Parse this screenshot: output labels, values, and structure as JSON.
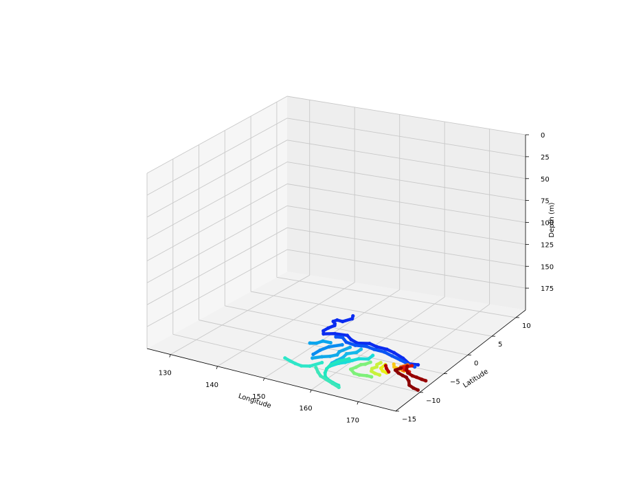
{
  "chart_data": {
    "type": "scatter",
    "projection": "3d",
    "title": "",
    "xlabel": "Longitude",
    "ylabel": "Latitude",
    "zlabel": "Depth (m)",
    "xlim": [
      125,
      178
    ],
    "ylim": [
      -15,
      12
    ],
    "zlim": [
      0,
      200
    ],
    "z_inverted": true,
    "grid": true,
    "colormap": "jet",
    "x_ticks": [
      "130",
      "140",
      "150",
      "160",
      "170"
    ],
    "y_ticks": [
      "−15",
      "−10",
      "−5",
      "0",
      "5",
      "10"
    ],
    "z_ticks": [
      "0",
      "25",
      "50",
      "75",
      "100",
      "125",
      "150",
      "175"
    ],
    "series": [
      {
        "color": "#0b2cf0",
        "depth": 200,
        "points": [
          [
            148.9,
            3.7
          ],
          [
            149.5,
            3.0
          ],
          [
            148.6,
            1.9
          ],
          [
            147.3,
            2.0
          ],
          [
            147.0,
            1.5
          ],
          [
            147.9,
            1.0
          ],
          [
            148.3,
            0.6
          ],
          [
            147.9,
            -0.3
          ],
          [
            147.8,
            -1.2
          ],
          [
            148.6,
            -1.9
          ],
          [
            150.4,
            -1.3
          ],
          [
            152.9,
            -1.1
          ],
          [
            154.6,
            -1.9
          ],
          [
            156.5,
            -2.4
          ],
          [
            158.6,
            -1.9
          ],
          [
            160.6,
            -2.3
          ],
          [
            162.9,
            -2.4
          ],
          [
            164.9,
            -2.8
          ],
          [
            167.7,
            -3.6
          ],
          [
            170.0,
            -4.5
          ],
          [
            171.7,
            -4.3
          ]
        ]
      },
      {
        "color": "#0a55f5",
        "depth": 200,
        "points": [
          [
            151.4,
            -2.0
          ],
          [
            152.6,
            -1.8
          ],
          [
            154.4,
            -2.7
          ],
          [
            156.7,
            -3.0
          ],
          [
            158.8,
            -2.7
          ],
          [
            160.8,
            -3.0
          ],
          [
            163.1,
            -3.1
          ],
          [
            165.3,
            -3.6
          ],
          [
            167.7,
            -4.1
          ],
          [
            169.8,
            -4.6
          ],
          [
            171.6,
            -4.9
          ]
        ]
      },
      {
        "color": "#0a8cf0",
        "depth": 200,
        "points": [
          [
            154.4,
            -3.5
          ],
          [
            152.7,
            -4.6
          ],
          [
            152.1,
            -5.8
          ],
          [
            152.0,
            -7.1
          ]
        ]
      },
      {
        "color": "#0aa5ee",
        "depth": 200,
        "points": [
          [
            152.0,
            -3.6
          ],
          [
            150.3,
            -3.6
          ],
          [
            149.8,
            -4.4
          ],
          [
            148.7,
            -4.7
          ]
        ]
      },
      {
        "color": "#10a9ea",
        "depth": 200,
        "points": [
          [
            156.3,
            -3.7
          ],
          [
            155.6,
            -5.2
          ],
          [
            156.0,
            -6.0
          ],
          [
            155.2,
            -6.7
          ],
          [
            154.0,
            -7.2
          ],
          [
            152.8,
            -8.0
          ]
        ]
      },
      {
        "color": "#16b8ea",
        "depth": 200,
        "points": [
          [
            158.6,
            -3.6
          ],
          [
            158.6,
            -4.5
          ],
          [
            157.3,
            -5.3
          ],
          [
            157.6,
            -6.3
          ],
          [
            157.3,
            -7.3
          ],
          [
            157.1,
            -8.1
          ]
        ]
      },
      {
        "color": "#1adcd8",
        "depth": 200,
        "points": [
          [
            162.0,
            -4.4
          ],
          [
            162.1,
            -5.4
          ],
          [
            160.5,
            -5.8
          ],
          [
            159.8,
            -6.5
          ],
          [
            159.1,
            -7.3
          ],
          [
            158.3,
            -7.8
          ],
          [
            157.5,
            -8.9
          ]
        ]
      },
      {
        "color": "#21e6c0",
        "depth": 200,
        "points": [
          [
            158.9,
            -6.3
          ],
          [
            157.8,
            -7.3
          ],
          [
            157.3,
            -8.5
          ],
          [
            157.6,
            -9.6
          ],
          [
            158.3,
            -10.6
          ],
          [
            159.2,
            -11.4
          ],
          [
            160.3,
            -11.9
          ],
          [
            161.8,
            -12.3
          ],
          [
            163.3,
            -12.6
          ]
        ]
      },
      {
        "color": "#2ee6c8",
        "depth": 200,
        "points": [
          [
            155.4,
            -8.5
          ],
          [
            154.3,
            -9.9
          ],
          [
            152.9,
            -10.3
          ],
          [
            151.4,
            -10.1
          ],
          [
            150.0,
            -9.8
          ],
          [
            148.4,
            -9.4
          ]
        ]
      },
      {
        "color": "#3ce6ba",
        "depth": 200,
        "points": [
          [
            155.6,
            -9.9
          ],
          [
            157.0,
            -10.8
          ],
          [
            158.3,
            -11.5
          ],
          [
            160.1,
            -12.0
          ],
          [
            161.9,
            -12.5
          ],
          [
            163.8,
            -13.0
          ]
        ]
      },
      {
        "color": "#7ef07a",
        "depth": 200,
        "points": [
          [
            163.2,
            -6.0
          ],
          [
            162.8,
            -6.7
          ],
          [
            162.2,
            -7.0
          ],
          [
            162.0,
            -7.8
          ],
          [
            161.6,
            -8.5
          ],
          [
            163.1,
            -9.2
          ],
          [
            164.3,
            -9.3
          ],
          [
            165.7,
            -9.1
          ],
          [
            166.7,
            -9.1
          ]
        ]
      },
      {
        "color": "#c8f23c",
        "depth": 200,
        "points": [
          [
            165.0,
            -5.6
          ],
          [
            164.8,
            -6.2
          ],
          [
            165.3,
            -6.7
          ],
          [
            164.9,
            -7.3
          ],
          [
            165.4,
            -7.9
          ],
          [
            166.5,
            -8.2
          ],
          [
            167.6,
            -8.3
          ]
        ]
      },
      {
        "color": "#e8f018",
        "depth": 200,
        "points": [
          [
            166.2,
            -5.8
          ],
          [
            166.3,
            -6.8
          ],
          [
            167.2,
            -7.3
          ],
          [
            168.3,
            -7.5
          ]
        ]
      },
      {
        "color": "#fac814",
        "depth": 200,
        "points": [
          [
            167.5,
            -5.3
          ],
          [
            168.2,
            -5.9
          ],
          [
            169.6,
            -6.1
          ],
          [
            170.8,
            -6.3
          ]
        ]
      },
      {
        "color": "#f56e0c",
        "depth": 200,
        "points": [
          [
            170.0,
            -4.8
          ],
          [
            169.3,
            -5.6
          ],
          [
            170.4,
            -6.2
          ]
        ]
      },
      {
        "color": "#dc1408",
        "depth": 200,
        "points": [
          [
            170.9,
            -4.8
          ],
          [
            169.8,
            -5.5
          ],
          [
            170.6,
            -6.0
          ],
          [
            171.8,
            -6.2
          ]
        ]
      },
      {
        "color": "#8c0000",
        "depth": 200,
        "points": [
          [
            169.6,
            -5.8
          ],
          [
            169.1,
            -6.5
          ],
          [
            170.3,
            -7.0
          ],
          [
            171.5,
            -7.3
          ],
          [
            172.5,
            -7.5
          ],
          [
            173.8,
            -8.2
          ],
          [
            174.7,
            -9.0
          ],
          [
            176.0,
            -9.4
          ],
          [
            177.2,
            -9.6
          ]
        ]
      },
      {
        "color": "#960000",
        "depth": 200,
        "points": [
          [
            170.2,
            -5.1
          ],
          [
            170.9,
            -5.9
          ],
          [
            171.8,
            -6.5
          ],
          [
            173.2,
            -6.9
          ],
          [
            174.2,
            -7.0
          ],
          [
            175.5,
            -7.2
          ],
          [
            176.5,
            -7.3
          ]
        ]
      },
      {
        "color": "#b40000",
        "depth": 200,
        "points": [
          [
            166.5,
            -6.0
          ],
          [
            167.3,
            -6.6
          ],
          [
            168.4,
            -7.2
          ]
        ]
      }
    ]
  }
}
